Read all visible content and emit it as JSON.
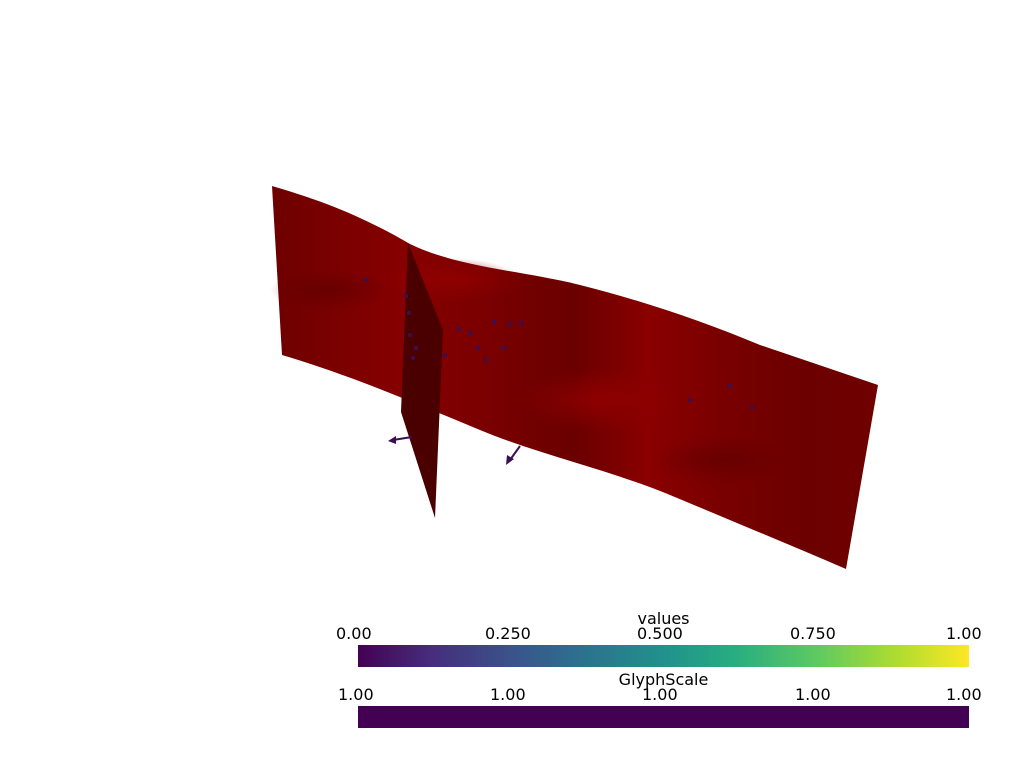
{
  "colors": {
    "surface_dark": "#6e0000",
    "surface_mid": "#7a0000",
    "surface_bright": "#8c0000",
    "plane": "#4b0000",
    "glyph": "#3b0f4f",
    "viridis_0": "#440154",
    "viridis_25": "#3b528b",
    "viridis_50": "#21918c",
    "viridis_75": "#5ec962",
    "viridis_100": "#fde725"
  },
  "scalar_bars": [
    {
      "title": "values",
      "ticks": [
        "0.00",
        "0.250",
        "0.500",
        "0.750",
        "1.00"
      ],
      "range": [
        0,
        1
      ],
      "colormap": "viridis"
    },
    {
      "title": "GlyphScale",
      "ticks": [
        "1.00",
        "1.00",
        "1.00",
        "1.00",
        "1.00"
      ],
      "range": [
        1,
        1
      ],
      "colormap": "constant"
    }
  ]
}
